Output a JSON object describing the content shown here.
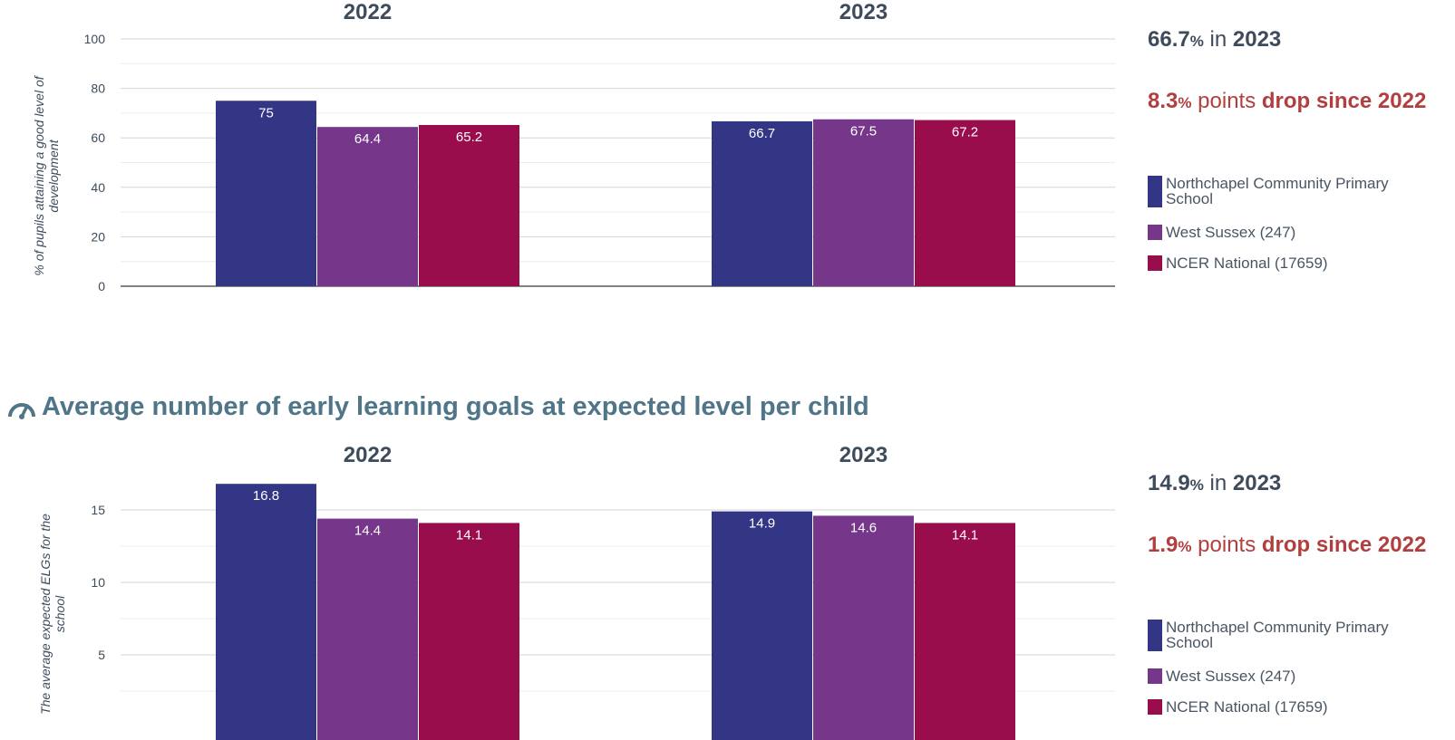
{
  "colors": {
    "school": "#323685",
    "region": "#76378b",
    "national": "#990d4c",
    "accent_text": "#b23f3f",
    "title_text": "#4f7588"
  },
  "section2": {
    "icon": "gauge-icon",
    "title": "Average number of early learning goals at expected level per child"
  },
  "summaries": [
    {
      "value": "66.7",
      "unit": "%",
      "in_word": "in",
      "year": "2023",
      "change_value": "8.3",
      "change_unit": "%",
      "points_word": "points",
      "direction_text": "drop since 2022"
    },
    {
      "value": "14.9",
      "unit": "%",
      "in_word": "in",
      "year": "2023",
      "change_value": "1.9",
      "change_unit": "%",
      "points_word": "points",
      "direction_text": "drop since 2022"
    }
  ],
  "legend": [
    {
      "label": "Northchapel Community Primary School",
      "color": "#323685"
    },
    {
      "label": "West Sussex (247)",
      "color": "#76378b"
    },
    {
      "label": "NCER National (17659)",
      "color": "#990d4c"
    }
  ],
  "chart_data": [
    {
      "type": "bar",
      "title": "",
      "ylabel": "% of pupils attaining a good level of development",
      "ylim": [
        0,
        100
      ],
      "yticks": [
        0,
        20,
        40,
        60,
        80,
        100
      ],
      "minor_gridlines": true,
      "grid": true,
      "legend_placement": "right",
      "categories": [
        "2022",
        "2023"
      ],
      "series": [
        {
          "name": "Northchapel Community Primary School",
          "color": "#323685",
          "values": [
            75,
            66.7
          ]
        },
        {
          "name": "West Sussex (247)",
          "color": "#76378b",
          "values": [
            64.4,
            67.5
          ]
        },
        {
          "name": "NCER National (17659)",
          "color": "#990d4c",
          "values": [
            65.2,
            67.2
          ]
        }
      ]
    },
    {
      "type": "bar",
      "title": "",
      "ylabel": "The average expected ELGs for the school",
      "ylim": [
        0,
        17.5
      ],
      "yticks": [
        5,
        10,
        15
      ],
      "minor_gridlines": true,
      "grid": true,
      "legend_placement": "right",
      "categories": [
        "2022",
        "2023"
      ],
      "series": [
        {
          "name": "Northchapel Community Primary School",
          "color": "#323685",
          "values": [
            16.8,
            14.9
          ]
        },
        {
          "name": "West Sussex (247)",
          "color": "#76378b",
          "values": [
            14.4,
            14.6
          ]
        },
        {
          "name": "NCER National (17659)",
          "color": "#990d4c",
          "values": [
            14.1,
            14.1
          ]
        }
      ]
    }
  ]
}
